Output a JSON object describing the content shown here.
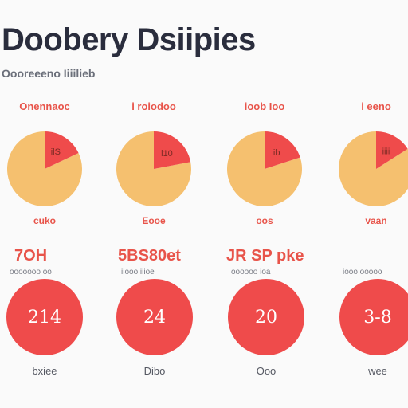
{
  "title": "Doobery Dsiipies",
  "subtitle": "Oooreeeno Iiiilieb",
  "colors": {
    "accent": "#e8544a",
    "pie_major": "#f5c06f",
    "pie_minor": "#ef4b4b",
    "stat_circle": "#ef4b4b"
  },
  "chart_data": [
    {
      "type": "pie",
      "title": "Onennaoc",
      "slices": [
        {
          "label": "",
          "value": 82,
          "color": "#f5c06f"
        },
        {
          "label": "ilS",
          "value": 18,
          "color": "#ef4b4b"
        }
      ],
      "footer": "cuko"
    },
    {
      "type": "pie",
      "title": "i roiodoo",
      "slices": [
        {
          "label": "",
          "value": 78,
          "color": "#f5c06f"
        },
        {
          "label": "i10",
          "value": 22,
          "color": "#ef4b4b"
        }
      ],
      "footer": "Eooe"
    },
    {
      "type": "pie",
      "title": "ioob Ioo",
      "slices": [
        {
          "label": "",
          "value": 80,
          "color": "#f5c06f"
        },
        {
          "label": "ib",
          "value": 20,
          "color": "#ef4b4b"
        }
      ],
      "footer": "oos"
    },
    {
      "type": "pie",
      "title": "i eeno",
      "slices": [
        {
          "label": "",
          "value": 84,
          "color": "#f5c06f"
        },
        {
          "label": "iiii",
          "value": 16,
          "color": "#ef4b4b"
        }
      ],
      "footer": "vaan"
    }
  ],
  "stats": [
    {
      "title": "7OH",
      "subtitle": "ooooooo oo",
      "value": "214",
      "footer": "bxiee"
    },
    {
      "title": "5BS80et",
      "subtitle": "iiooo iiioe",
      "value": "24",
      "footer": "Dibo"
    },
    {
      "title": "JR SP pke",
      "subtitle": "oooooo ioa",
      "value": "20",
      "footer": "Ooo"
    },
    {
      "title": "",
      "subtitle": "iooo ooooo",
      "value": "3-8",
      "footer": "wee"
    }
  ]
}
